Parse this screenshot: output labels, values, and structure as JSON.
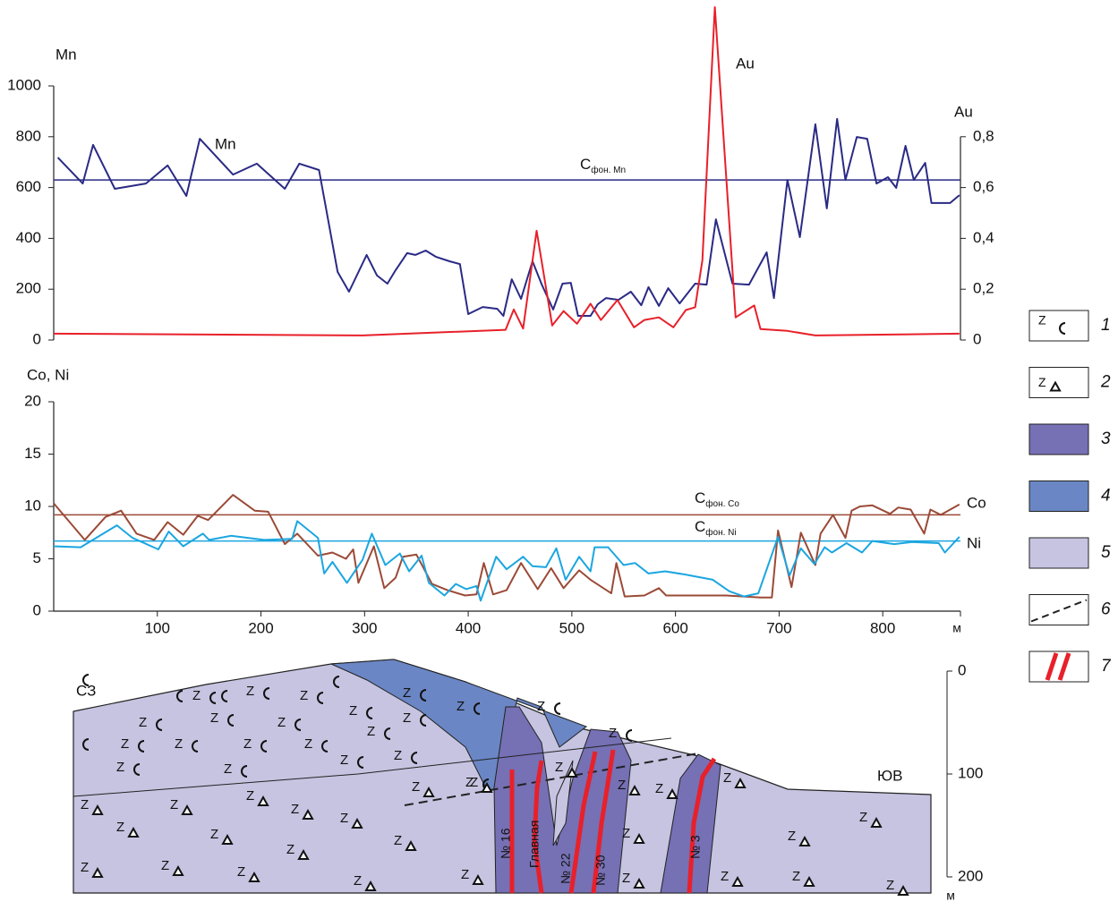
{
  "chart_data": [
    {
      "type": "line",
      "y_label": "Mn",
      "y2_label": "Au",
      "xlim": [
        0,
        875
      ],
      "ylim": [
        0,
        1000
      ],
      "yticks": [
        0,
        200,
        400,
        600,
        800,
        1000
      ],
      "y2lim": [
        0,
        1
      ],
      "y2ticks": [
        0,
        {
          "value": 0.2,
          "label": "0,2"
        },
        {
          "value": 0.4,
          "label": "0,4"
        },
        {
          "value": 0.6,
          "label": "0,6"
        },
        {
          "value": 0.8,
          "label": "0,8"
        }
      ],
      "series": [
        {
          "name": "Mn",
          "color": "#2a2a85",
          "x": [
            4,
            28,
            38,
            59,
            89,
            110,
            128,
            141,
            173,
            196,
            223,
            237,
            256,
            274,
            285,
            302,
            312,
            322,
            330,
            341,
            349,
            359,
            369,
            382,
            392,
            400,
            414,
            428,
            434,
            442,
            451,
            462,
            471,
            482,
            491,
            499,
            506,
            518,
            525,
            533,
            545,
            557,
            567,
            574,
            584,
            593,
            604,
            619,
            630,
            639,
            655,
            671,
            688,
            695,
            708,
            720,
            735,
            746,
            756,
            764,
            775,
            785,
            794,
            805,
            813,
            822,
            830,
            841,
            847,
            865,
            874
          ],
          "values": [
            718,
            616,
            768,
            595,
            616,
            687,
            567,
            792,
            651,
            694,
            595,
            694,
            669,
            268,
            190,
            335,
            254,
            222,
            275,
            342,
            335,
            352,
            327,
            310,
            299,
            102,
            130,
            123,
            95,
            239,
            162,
            310,
            218,
            120,
            222,
            225,
            95,
            95,
            141,
            165,
            158,
            190,
            137,
            208,
            134,
            204,
            144,
            222,
            218,
            475,
            222,
            218,
            345,
            165,
            630,
            405,
            849,
            518,
            870,
            630,
            799,
            792,
            616,
            641,
            599,
            764,
            630,
            697,
            539,
            539,
            570
          ]
        },
        {
          "name": "Au",
          "color": "#e8202a",
          "axis": "y2",
          "x": [
            0,
            298,
            436,
            444,
            453,
            466,
            481,
            492,
            505,
            518,
            528,
            544,
            560,
            570,
            584,
            598,
            610,
            619,
            626,
            638,
            658,
            676,
            682,
            708,
            735,
            874
          ],
          "values": [
            0.025,
            0.018,
            0.04,
            0.12,
            0.045,
            0.43,
            0.057,
            0.114,
            0.064,
            0.143,
            0.079,
            0.157,
            0.05,
            0.079,
            0.089,
            0.05,
            0.118,
            0.129,
            0.314,
            1.31,
            0.089,
            0.136,
            0.043,
            0.036,
            0.018,
            0.025
          ]
        }
      ],
      "reference_lines": [
        {
          "label": "C",
          "sub": "фон. Mn",
          "value": 630,
          "color": "#2a2a85"
        }
      ]
    },
    {
      "type": "line",
      "y_label": "Co, Ni",
      "x_label": "м",
      "xlim": [
        0,
        875
      ],
      "xticks": [
        100,
        200,
        300,
        400,
        500,
        600,
        700,
        800
      ],
      "ylim": [
        0,
        20
      ],
      "yticks": [
        0,
        5,
        10,
        15,
        20
      ],
      "series": [
        {
          "name": "Co",
          "color": "#9b4a37",
          "x": [
            0,
            30,
            50,
            65,
            80,
            97,
            110,
            125,
            139,
            149,
            173,
            194,
            207,
            223,
            235,
            255,
            269,
            282,
            289,
            294,
            309,
            319,
            330,
            337,
            350,
            365,
            380,
            397,
            408,
            415,
            424,
            437,
            451,
            467,
            480,
            492,
            507,
            518,
            538,
            543,
            551,
            570,
            584,
            591,
            649,
            682,
            693,
            699,
            712,
            721,
            735,
            740,
            752,
            764,
            770,
            778,
            790,
            807,
            815,
            827,
            840,
            846,
            856,
            874
          ],
          "values": [
            10.3,
            6.8,
            9.0,
            9.6,
            7.4,
            6.8,
            8.5,
            7.3,
            9.1,
            8.7,
            11.1,
            9.6,
            9.5,
            6.4,
            7.4,
            5.3,
            5.6,
            5.0,
            5.9,
            2.7,
            6.2,
            2.2,
            3.2,
            5.2,
            5.4,
            2.6,
            2.0,
            1.5,
            1.6,
            4.6,
            1.6,
            2.0,
            4.6,
            2.1,
            4.1,
            2.2,
            3.9,
            3.0,
            1.7,
            4.6,
            1.4,
            1.5,
            2.2,
            1.5,
            1.5,
            1.3,
            1.3,
            7.7,
            2.3,
            7.5,
            4.4,
            7.4,
            9.2,
            7.0,
            9.6,
            10.0,
            10.1,
            9.3,
            9.9,
            9.7,
            7.4,
            9.7,
            9.2,
            10.2
          ]
        },
        {
          "name": "Ni",
          "color": "#1ba6e0",
          "x": [
            0,
            26,
            61,
            76,
            101,
            111,
            125,
            144,
            150,
            171,
            203,
            230,
            235,
            255,
            261,
            269,
            283,
            298,
            307,
            320,
            334,
            343,
            355,
            362,
            377,
            388,
            398,
            408,
            412,
            427,
            437,
            453,
            462,
            475,
            485,
            494,
            507,
            518,
            522,
            535,
            550,
            561,
            574,
            590,
            609,
            636,
            652,
            666,
            680,
            699,
            710,
            721,
            734,
            744,
            751,
            765,
            780,
            790,
            811,
            828,
            854,
            860,
            874
          ],
          "values": [
            6.2,
            6.1,
            8.2,
            7.0,
            5.9,
            7.6,
            6.2,
            7.4,
            6.8,
            7.2,
            6.8,
            6.9,
            8.6,
            7.0,
            3.6,
            4.7,
            2.7,
            4.9,
            7.4,
            4.4,
            5.5,
            3.8,
            5.3,
            2.7,
            1.5,
            2.6,
            2.1,
            2.4,
            1.0,
            5.2,
            4.0,
            5.2,
            4.3,
            4.2,
            6.0,
            3.0,
            5.2,
            3.8,
            6.1,
            6.1,
            4.4,
            4.6,
            3.6,
            3.8,
            3.5,
            3.0,
            1.9,
            1.4,
            1.7,
            7.1,
            3.4,
            6.0,
            4.5,
            6.1,
            5.6,
            6.5,
            5.6,
            6.7,
            6.4,
            6.6,
            6.5,
            5.6,
            7.1
          ]
        }
      ],
      "reference_lines": [
        {
          "label": "C",
          "sub": "фон. Co",
          "value": 9.2,
          "color": "#9b4a37"
        },
        {
          "label": "C",
          "sub": "фон. Ni",
          "value": 6.7,
          "color": "#1ba6e0"
        }
      ]
    }
  ],
  "section": {
    "left_label": "СЗ",
    "right_label": "ЮВ",
    "veins": [
      "№ 16",
      "Главная",
      "№ 22",
      "№ 30",
      "№ 3"
    ],
    "rock_symbol": "Z",
    "depth_lim": [
      0,
      200
    ],
    "depth_ticks": [
      0,
      100,
      200
    ],
    "depth_unit": "м"
  },
  "legend": {
    "items": [
      "1",
      "2",
      "3",
      "4",
      "5",
      "6",
      "7"
    ]
  }
}
